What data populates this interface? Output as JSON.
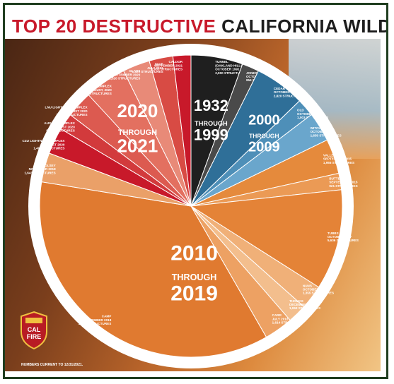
{
  "header": {
    "title_red": "TOP 20 DESTRUCTIVE",
    "title_dark": "CALIFORNIA WILDFIRES"
  },
  "footnote": "NUMBERS CURRENT TO 12/31/2021.",
  "logo": {
    "line1": "CAL",
    "line2": "FIRE",
    "icon": "cal-fire-shield-icon"
  },
  "colors": {
    "era_1932_1999": "#1f1f1f",
    "era_2000_2009": "#3d7ea6",
    "era_2010_2019": "#e07a30",
    "era_2020_2021": "#c8192a"
  },
  "chart_data": {
    "type": "pie",
    "start_angle_deg": 0,
    "direction": "clockwise",
    "groups": [
      {
        "name": "1932 THROUGH 1999",
        "line1": "1932",
        "line2": "THROUGH",
        "line3": "1999"
      },
      {
        "name": "2000 THROUGH 2009",
        "line1": "2000",
        "line2": "THROUGH",
        "line3": "2009"
      },
      {
        "name": "2010 THROUGH 2019",
        "line1": "2010",
        "line2": "THROUGH",
        "line3": "2019"
      },
      {
        "name": "2020 THROUGH 2021",
        "line1": "2020",
        "line2": "THROUGH",
        "line3": "2021"
      }
    ],
    "slices": [
      {
        "group": 0,
        "label": "TUNNEL",
        "sub": "(OAKLAND HILLS)",
        "date": "OCTOBER 1991",
        "value": 2900,
        "structures": "2,900 STRUCTURES",
        "color": "#1f1f1f"
      },
      {
        "group": 0,
        "label": "JONES",
        "date": "OCTOBER 1999",
        "value": 954,
        "structures": "954 STRUCTURES",
        "color": "#4a4a4a"
      },
      {
        "group": 1,
        "label": "CEDAR",
        "date": "OCTOBER 2003",
        "value": 2820,
        "structures": "2,820 STRUCTURES",
        "color": "#2f6f98"
      },
      {
        "group": 1,
        "label": "OLD",
        "date": "OCTOBER 2003",
        "value": 1003,
        "structures": "1,003 STRUCTURES",
        "color": "#4e8fb8"
      },
      {
        "group": 1,
        "label": "WITCH",
        "date": "OCTOBER 2007",
        "value": 1650,
        "structures": "1,650 STRUCTURES",
        "color": "#6aa6cc"
      },
      {
        "group": 2,
        "label": "VALLEY",
        "date": "SEPTEMBER 2015",
        "value": 1955,
        "structures": "1,955 STRUCTURES",
        "color": "#e58a3c"
      },
      {
        "group": 2,
        "label": "BUTTE",
        "date": "SEPTEMBER 2015",
        "value": 921,
        "structures": "921 STRUCTURES",
        "color": "#eb9a55"
      },
      {
        "group": 2,
        "label": "TUBBS",
        "date": "OCTOBER 2017",
        "value": 5636,
        "structures": "5,636 STRUCTURES",
        "color": "#e48337"
      },
      {
        "group": 2,
        "label": "NUNS",
        "date": "OCTOBER 2017",
        "value": 1355,
        "structures": "1,355 STRUCTURES",
        "color": "#f0b078"
      },
      {
        "group": 2,
        "label": "THOMAS",
        "date": "DECEMBER 2017",
        "value": 1063,
        "structures": "1,063 STRUCTURES",
        "color": "#f3be8d"
      },
      {
        "group": 2,
        "label": "CARR",
        "date": "JULY 2018",
        "value": 1614,
        "structures": "1,614 STRUCTURES",
        "color": "#eda163"
      },
      {
        "group": 2,
        "label": "CAMP",
        "date": "NOVEMBER 2018",
        "value": 18804,
        "structures": "18,804 STRUCTURES",
        "color": "#e07a30"
      },
      {
        "group": 2,
        "label": "WOOLSEY",
        "date": "NOVEMBER 2018",
        "value": 1643,
        "structures": "1,643 STRUCTURES",
        "color": "#eaa068"
      },
      {
        "group": 3,
        "label": "CZU LIGHTNING COMPLEX",
        "date": "AUGUST 2020",
        "value": 1490,
        "structures": "1,490 STRUCTURES",
        "color": "#c8192a"
      },
      {
        "group": 3,
        "label": "AUGUST COMPLEX",
        "date": "AUGUST 2020",
        "value": 935,
        "structures": "935 STRUCTURES",
        "color": "#d23a3c"
      },
      {
        "group": 3,
        "label": "LNU LIGHTNING COMPLEX",
        "date": "AUGUST 2020",
        "value": 1491,
        "structures": "1,491 STRUCTURES",
        "color": "#dc5a50"
      },
      {
        "group": 3,
        "label": "NORTH COMPLEX",
        "date": "AUGUST, 2020",
        "value": 2352,
        "structures": "2,352 STRUCTURES",
        "color": "#e37060"
      },
      {
        "group": 3,
        "label": "GLASS",
        "date": "SEPTEMBER 2020",
        "value": 1520,
        "structures": "1,520 STRUCTURES",
        "color": "#e88a78"
      },
      {
        "group": 3,
        "label": "DIXIE",
        "date": "JULY 2021",
        "value": 1329,
        "structures": "1,329 STRUCTURES",
        "color": "#d84b44"
      },
      {
        "group": 3,
        "label": "CALDOR",
        "date": "SEPTEMBER 2021",
        "value": 1003,
        "structures": "1,003 STRUCTURES",
        "color": "#c8192a"
      }
    ]
  }
}
